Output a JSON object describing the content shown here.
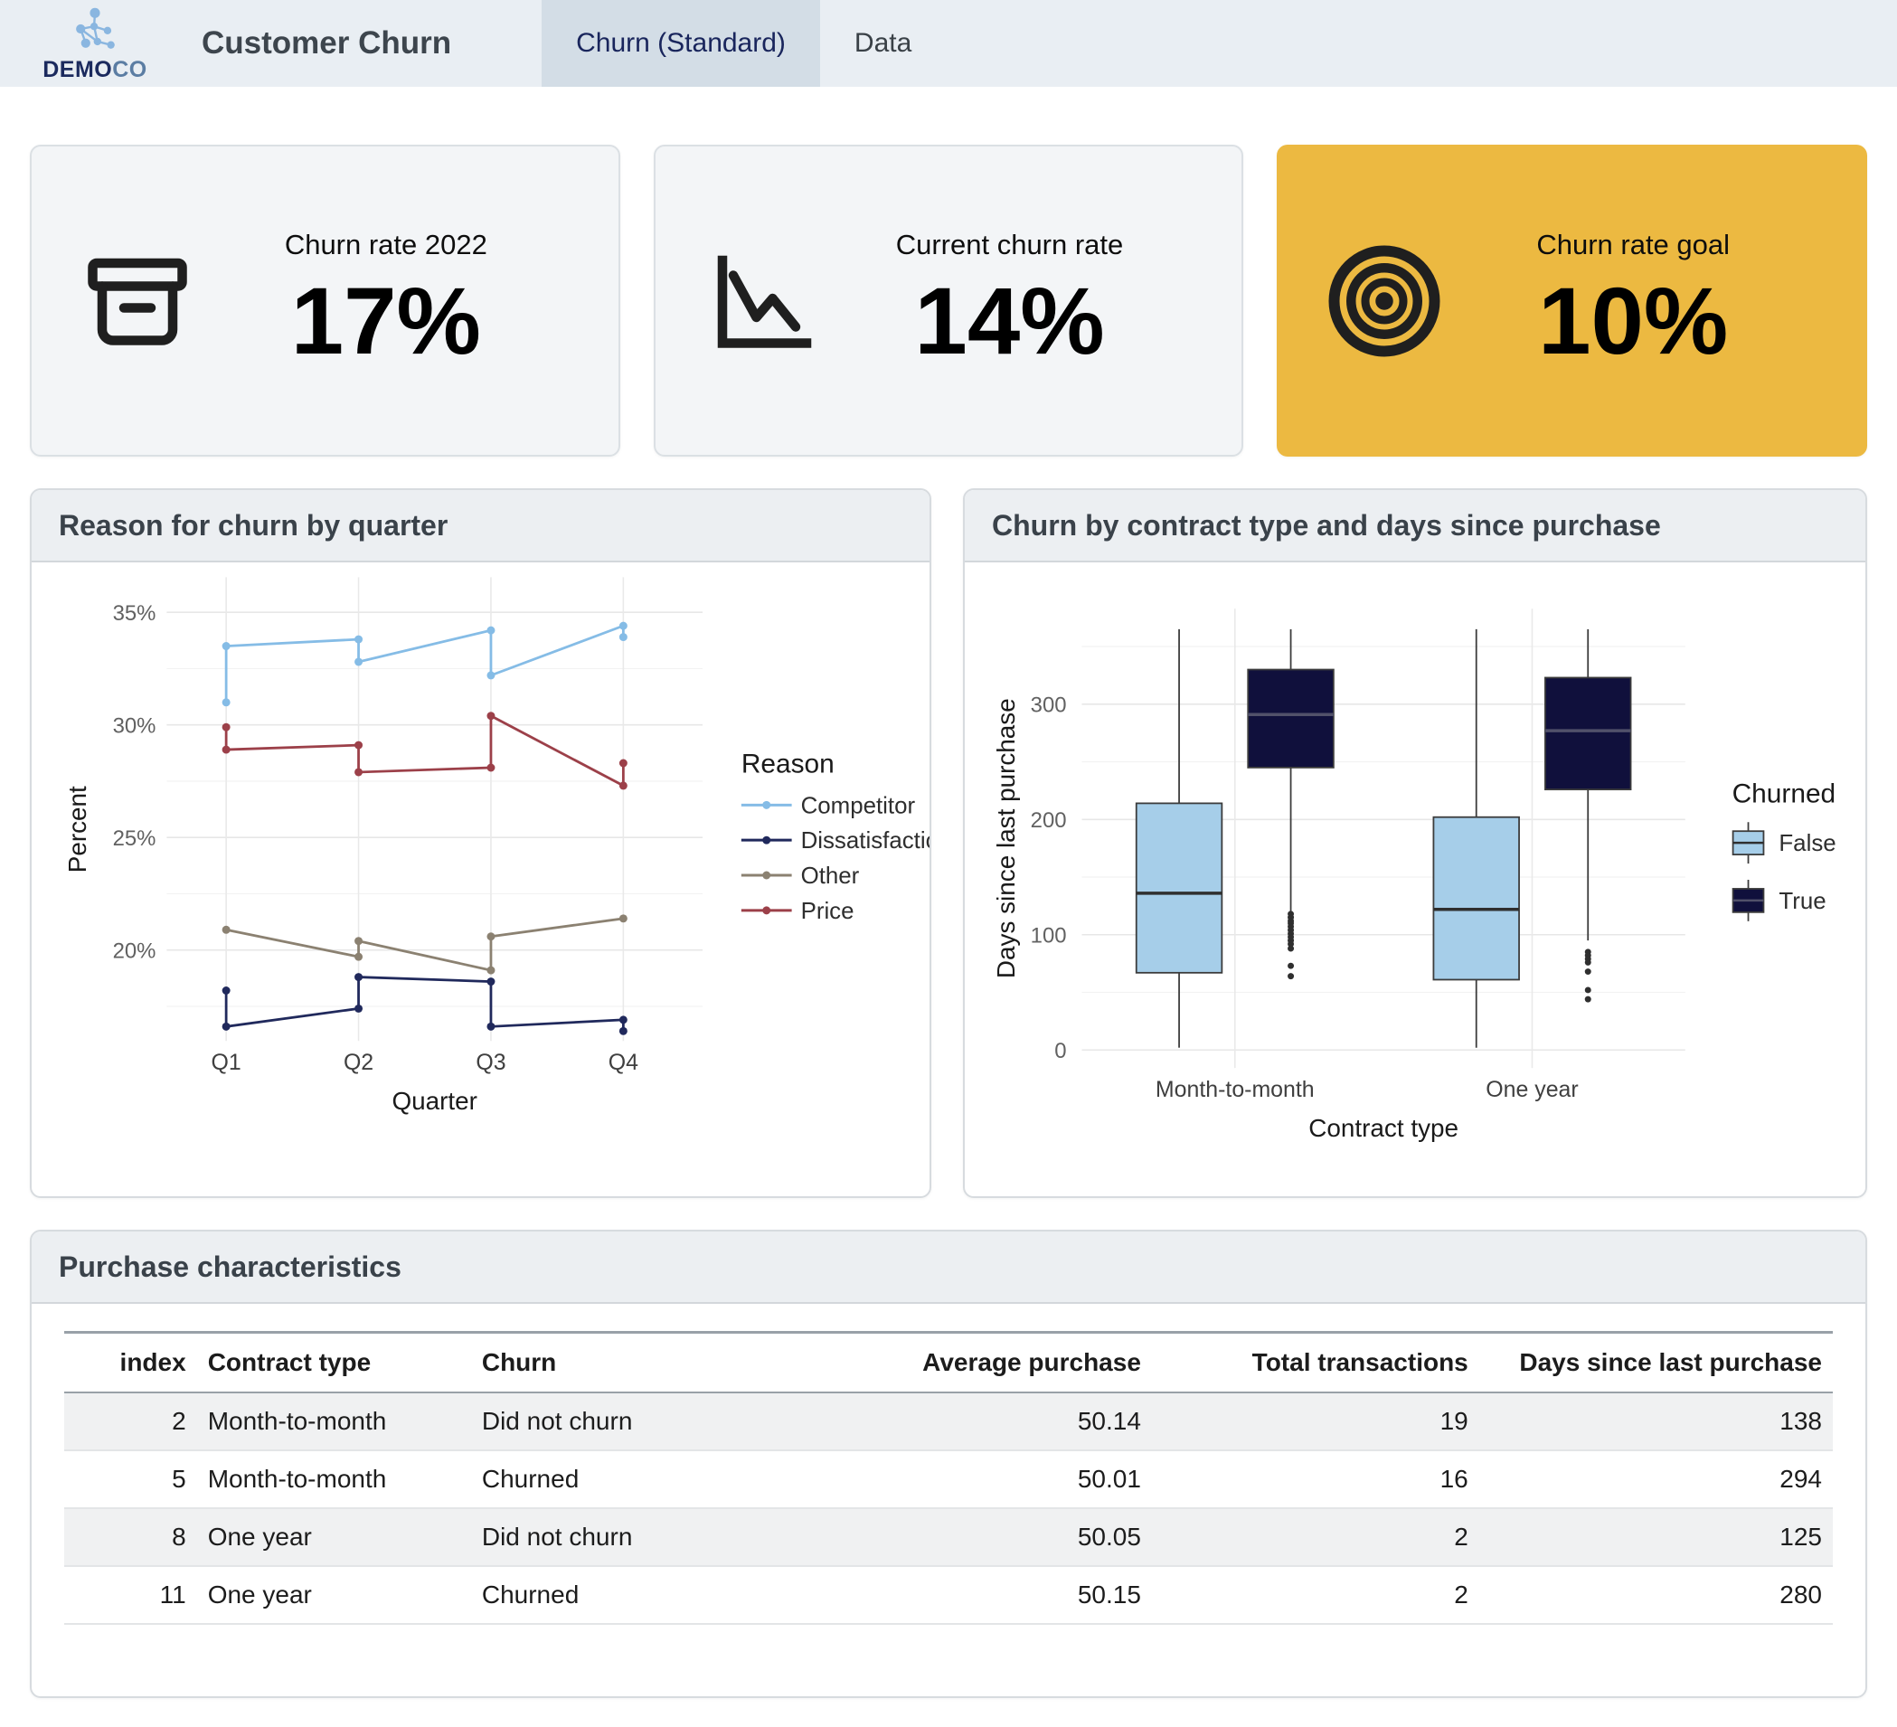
{
  "header": {
    "logo": {
      "brand_bold": "DEMO",
      "brand_light": "CO",
      "icon": "network-molecule-icon"
    },
    "title": "Customer Churn",
    "tabs": [
      {
        "label": "Churn (Standard)",
        "active": true
      },
      {
        "label": "Data",
        "active": false
      }
    ]
  },
  "colors": {
    "accent_yellow": "#ecb941",
    "header_bg": "#e9eef3",
    "active_tab_bg": "#d3dde6",
    "brand_navy": "#1b2a5e",
    "box_false": "#a6cee9",
    "box_true": "#10103c"
  },
  "kpis": [
    {
      "label": "Churn rate 2022",
      "value": "17%",
      "icon": "archive-box-icon",
      "bg": "#f3f5f7",
      "highlight": false
    },
    {
      "label": "Current churn rate",
      "value": "14%",
      "icon": "declining-chart-icon",
      "bg": "#f3f5f7",
      "highlight": false
    },
    {
      "label": "Churn rate goal",
      "value": "10%",
      "icon": "target-icon",
      "bg": "#ecb941",
      "highlight": true
    }
  ],
  "chart_data": [
    {
      "type": "line",
      "title": "Reason for churn by quarter",
      "xlabel": "Quarter",
      "ylabel": "Percent",
      "x_categories": [
        "Q1",
        "Q2",
        "Q3",
        "Q4"
      ],
      "y_ticks": [
        20,
        25,
        30,
        35
      ],
      "y_minor_ticks": [
        17.5,
        22.5,
        27.5,
        32.5
      ],
      "y_tick_suffix": "%",
      "ylim": [
        16,
        36.4
      ],
      "grid": true,
      "legend_title": "Reason",
      "legend_position": "right",
      "series": [
        {
          "name": "Competitor",
          "color": "#85bce6",
          "points": [
            [
              0,
              31.0
            ],
            [
              0,
              33.5
            ],
            [
              1,
              33.8
            ],
            [
              1,
              32.8
            ],
            [
              2,
              34.2
            ],
            [
              2,
              32.2
            ],
            [
              3,
              34.4
            ],
            [
              3,
              33.9
            ]
          ]
        },
        {
          "name": "Dissatisfaction",
          "color": "#20295c",
          "points": [
            [
              0,
              18.2
            ],
            [
              0,
              16.6
            ],
            [
              1,
              17.4
            ],
            [
              1,
              18.8
            ],
            [
              2,
              18.6
            ],
            [
              2,
              16.6
            ],
            [
              3,
              16.9
            ],
            [
              3,
              16.4
            ]
          ]
        },
        {
          "name": "Other",
          "color": "#8b8171",
          "points": [
            [
              0,
              20.9
            ],
            [
              1,
              19.7
            ],
            [
              1,
              20.4
            ],
            [
              2,
              19.1
            ],
            [
              2,
              20.6
            ],
            [
              3,
              21.4
            ]
          ]
        },
        {
          "name": "Price",
          "color": "#9c4049",
          "points": [
            [
              0,
              29.9
            ],
            [
              0,
              28.9
            ],
            [
              1,
              29.1
            ],
            [
              1,
              27.9
            ],
            [
              2,
              28.1
            ],
            [
              2,
              30.4
            ],
            [
              3,
              27.3
            ],
            [
              3,
              28.3
            ]
          ]
        }
      ]
    },
    {
      "type": "box",
      "title": "Churn by contract type and days since purchase",
      "xlabel": "Contract type",
      "ylabel": "Days since last purchase",
      "categories": [
        "Month-to-month",
        "One year"
      ],
      "y_ticks": [
        0,
        100,
        200,
        300
      ],
      "y_minor_ticks": [
        50,
        150,
        250,
        350
      ],
      "ylim": [
        0,
        380
      ],
      "grid": true,
      "legend_title": "Churned",
      "legend_position": "right",
      "groups": [
        {
          "name": "False",
          "color": "#a6cee9",
          "median_color": "#2f2f2f"
        },
        {
          "name": "True",
          "color": "#10103c",
          "median_color": "#51516a"
        }
      ],
      "boxes": [
        {
          "category": "Month-to-month",
          "group": "False",
          "whisker_low": 2,
          "q1": 67,
          "median": 136,
          "q3": 214,
          "whisker_high": 365,
          "outliers": []
        },
        {
          "category": "Month-to-month",
          "group": "True",
          "whisker_low": 120,
          "q1": 245,
          "median": 291,
          "q3": 330,
          "whisker_high": 365,
          "outliers": [
            118,
            115,
            112,
            110,
            107,
            104,
            101,
            98,
            95,
            92,
            88,
            73,
            64
          ]
        },
        {
          "category": "One year",
          "group": "False",
          "whisker_low": 2,
          "q1": 61,
          "median": 122,
          "q3": 202,
          "whisker_high": 365,
          "outliers": []
        },
        {
          "category": "One year",
          "group": "True",
          "whisker_low": 95,
          "q1": 226,
          "median": 277,
          "q3": 323,
          "whisker_high": 365,
          "outliers": [
            85,
            82,
            79,
            76,
            68,
            52,
            44
          ]
        }
      ]
    }
  ],
  "table": {
    "title": "Purchase characteristics",
    "columns": [
      {
        "label": "index",
        "align": "right"
      },
      {
        "label": "Contract type",
        "align": "left"
      },
      {
        "label": "Churn",
        "align": "left"
      },
      {
        "label": "Average purchase",
        "align": "right"
      },
      {
        "label": "Total transactions",
        "align": "right"
      },
      {
        "label": "Days since last purchase",
        "align": "right"
      }
    ],
    "rows": [
      [
        "2",
        "Month-to-month",
        "Did not churn",
        "50.14",
        "19",
        "138"
      ],
      [
        "5",
        "Month-to-month",
        "Churned",
        "50.01",
        "16",
        "294"
      ],
      [
        "8",
        "One year",
        "Did not churn",
        "50.05",
        "2",
        "125"
      ],
      [
        "11",
        "One year",
        "Churned",
        "50.15",
        "2",
        "280"
      ]
    ]
  }
}
